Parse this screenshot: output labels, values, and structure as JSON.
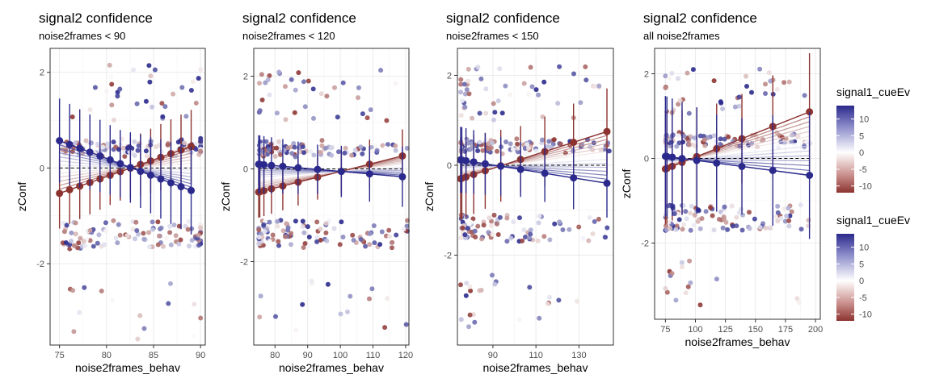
{
  "chart_data": [
    {
      "type": "scatter",
      "title": "signal2 confidence",
      "subtitle": "noise2frames < 90",
      "xlabel": "noise2frames_behav",
      "ylabel": "zConf",
      "xlim": [
        74,
        90.5
      ],
      "ylim": [
        -3.7,
        2.5
      ],
      "xticks": [
        75,
        80,
        85,
        90
      ],
      "yticks": [
        -2,
        0,
        2
      ],
      "grid": true,
      "points_seed": 11,
      "fit": {
        "x_start": 75,
        "x_end": 89,
        "high": {
          "start": 0.57,
          "end": -0.47
        },
        "low": {
          "start": -0.53,
          "end": 0.45
        },
        "err_high": 0.8,
        "err_low": 0.6,
        "n_means": 14
      }
    },
    {
      "type": "scatter",
      "title": "signal2 confidence",
      "subtitle": "noise2frames < 120",
      "xlabel": "noise2frames_behav",
      "ylabel": "zConf",
      "xlim": [
        73.5,
        121
      ],
      "ylim": [
        -3.8,
        2.6
      ],
      "xticks": [
        80,
        90,
        100,
        110,
        120
      ],
      "yticks": [
        -2,
        0,
        2
      ],
      "grid": true,
      "points_seed": 23,
      "fit": {
        "x_start": 75,
        "x_end": 119,
        "high": {
          "start": 0.1,
          "end": -0.17
        },
        "low": {
          "start": -0.5,
          "end": 0.28
        },
        "err_high": 0.45,
        "err_low": 0.35,
        "n_means": 10
      }
    },
    {
      "type": "scatter",
      "title": "signal2 confidence",
      "subtitle": "noise2frames < 150",
      "xlabel": "noise2frames_behav",
      "ylabel": "zConf",
      "xlim": [
        73.5,
        146
      ],
      "ylim": [
        -4.0,
        2.6
      ],
      "xticks": [
        90,
        110,
        130
      ],
      "yticks": [
        -2,
        0,
        2
      ],
      "grid": true,
      "points_seed": 37,
      "fit": {
        "x_start": 75,
        "x_end": 143,
        "high": {
          "start": 0.12,
          "end": -0.4
        },
        "low": {
          "start": -0.3,
          "end": 0.75
        },
        "err_high": 0.6,
        "err_low": 0.85,
        "n_means": 10
      }
    },
    {
      "type": "scatter",
      "title": "signal2 confidence",
      "subtitle": "all noise2frames",
      "xlabel": "noise2frames_behav",
      "ylabel": "zConf",
      "xlim": [
        66,
        204
      ],
      "ylim": [
        -3.8,
        2.6
      ],
      "xticks": [
        75,
        100,
        125,
        150,
        175,
        200
      ],
      "yticks": [
        -2,
        0,
        2
      ],
      "grid": true,
      "points_seed": 51,
      "fit": {
        "x_start": 75,
        "x_end": 195,
        "high": {
          "start": 0.05,
          "end": -0.4
        },
        "low": {
          "start": -0.25,
          "end": 1.1
        },
        "err_high": 1.55,
        "err_low": 1.4,
        "n_means": 9
      }
    }
  ],
  "legends": [
    {
      "title": "signal1_cueEv",
      "ticks": [
        10,
        5,
        0,
        -5,
        -10
      ],
      "tick_labels": [
        "10",
        "5",
        "0",
        "-5",
        "-10"
      ],
      "range": [
        -12,
        14
      ],
      "colors": {
        "low": "#8c3330",
        "mid": "#ffffff",
        "high": "#2b2a8c"
      }
    },
    {
      "title": "signal1_cueEv",
      "ticks": [
        10,
        5,
        0,
        -5,
        -10
      ],
      "tick_labels": [
        "10",
        "5",
        "0",
        "-5",
        "-10"
      ],
      "range": [
        -12,
        14
      ],
      "colors": {
        "low": "#8c3330",
        "mid": "#ffffff",
        "high": "#2b2a8c"
      }
    }
  ]
}
